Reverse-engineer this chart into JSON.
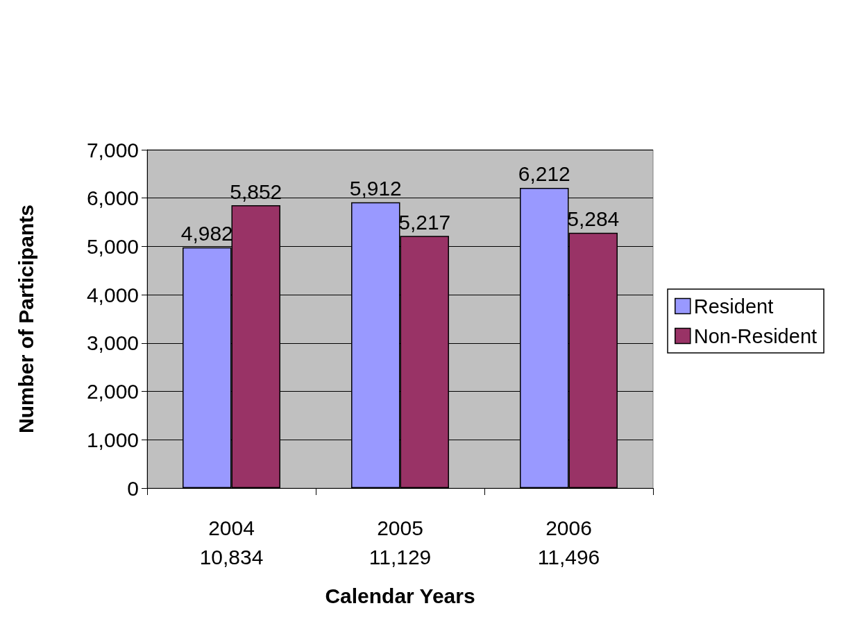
{
  "chart_data": {
    "type": "bar",
    "xlabel": "Calendar Years",
    "ylabel": "Number of Participants",
    "categories": [
      "2004",
      "2005",
      "2006"
    ],
    "totals": [
      "10,834",
      "11,129",
      "11,496"
    ],
    "series": [
      {
        "name": "Resident",
        "color": "#9999ff",
        "values": [
          4982,
          5912,
          6212
        ],
        "value_labels": [
          "4,982",
          "5,912",
          "6,212"
        ]
      },
      {
        "name": "Non-Resident",
        "color": "#993366",
        "values": [
          5852,
          5217,
          5284
        ],
        "value_labels": [
          "5,852",
          "5,217",
          "5,284"
        ]
      }
    ],
    "ylim": [
      0,
      7000
    ],
    "yticks": [
      {
        "value": 0,
        "label": "0"
      },
      {
        "value": 1000,
        "label": "1,000"
      },
      {
        "value": 2000,
        "label": "2,000"
      },
      {
        "value": 3000,
        "label": "3,000"
      },
      {
        "value": 4000,
        "label": "4,000"
      },
      {
        "value": 5000,
        "label": "5,000"
      },
      {
        "value": 6000,
        "label": "6,000"
      },
      {
        "value": 7000,
        "label": "7,000"
      }
    ],
    "grid": "y",
    "legend": "right"
  }
}
